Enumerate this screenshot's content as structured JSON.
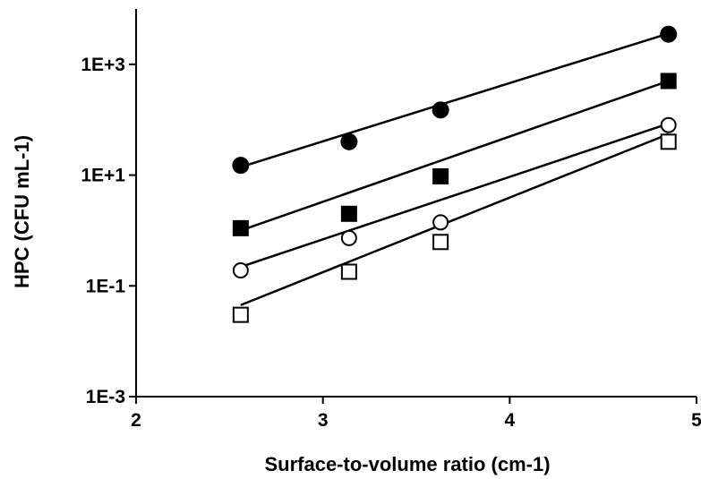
{
  "chart_data": {
    "type": "scatter",
    "title": "",
    "xlabel": "Surface-to-volume ratio (cm-1)",
    "ylabel": "HPC (CFU mL-1)",
    "xlim": [
      2,
      5
    ],
    "ylim": [
      0.001,
      10000
    ],
    "yscale": "log",
    "x_ticks": [
      {
        "value": 2,
        "label": "2"
      },
      {
        "value": 3,
        "label": "3"
      },
      {
        "value": 4,
        "label": "4"
      },
      {
        "value": 5,
        "label": "5"
      }
    ],
    "y_ticks": [
      {
        "value": 0.001,
        "label": "1E-3"
      },
      {
        "value": 0.1,
        "label": "1E-1"
      },
      {
        "value": 10,
        "label": "1E+1"
      },
      {
        "value": 1000,
        "label": "1E+3"
      }
    ],
    "grid": false,
    "legend": "none",
    "series": [
      {
        "marker": "filled-circle",
        "color": "#000000",
        "x": [
          2.56,
          3.14,
          3.63,
          4.85
        ],
        "y": [
          15,
          40,
          150,
          3500
        ],
        "fit": {
          "x": [
            2.56,
            4.85
          ],
          "y": [
            14,
            3600
          ]
        }
      },
      {
        "marker": "filled-square",
        "color": "#000000",
        "x": [
          2.56,
          3.14,
          3.63,
          4.85
        ],
        "y": [
          1.1,
          2.0,
          9.5,
          500
        ],
        "fit": {
          "x": [
            2.56,
            4.85
          ],
          "y": [
            1.0,
            500
          ]
        }
      },
      {
        "marker": "open-circle",
        "color": "#000000",
        "x": [
          2.56,
          3.14,
          3.63,
          4.85
        ],
        "y": [
          0.19,
          0.73,
          1.4,
          80
        ],
        "fit": {
          "x": [
            2.56,
            4.85
          ],
          "y": [
            0.22,
            85
          ]
        }
      },
      {
        "marker": "open-square",
        "color": "#000000",
        "x": [
          2.56,
          3.14,
          3.63,
          4.85
        ],
        "y": [
          0.03,
          0.18,
          0.62,
          40
        ],
        "fit": {
          "x": [
            2.56,
            4.85
          ],
          "y": [
            0.045,
            55
          ]
        }
      }
    ]
  }
}
